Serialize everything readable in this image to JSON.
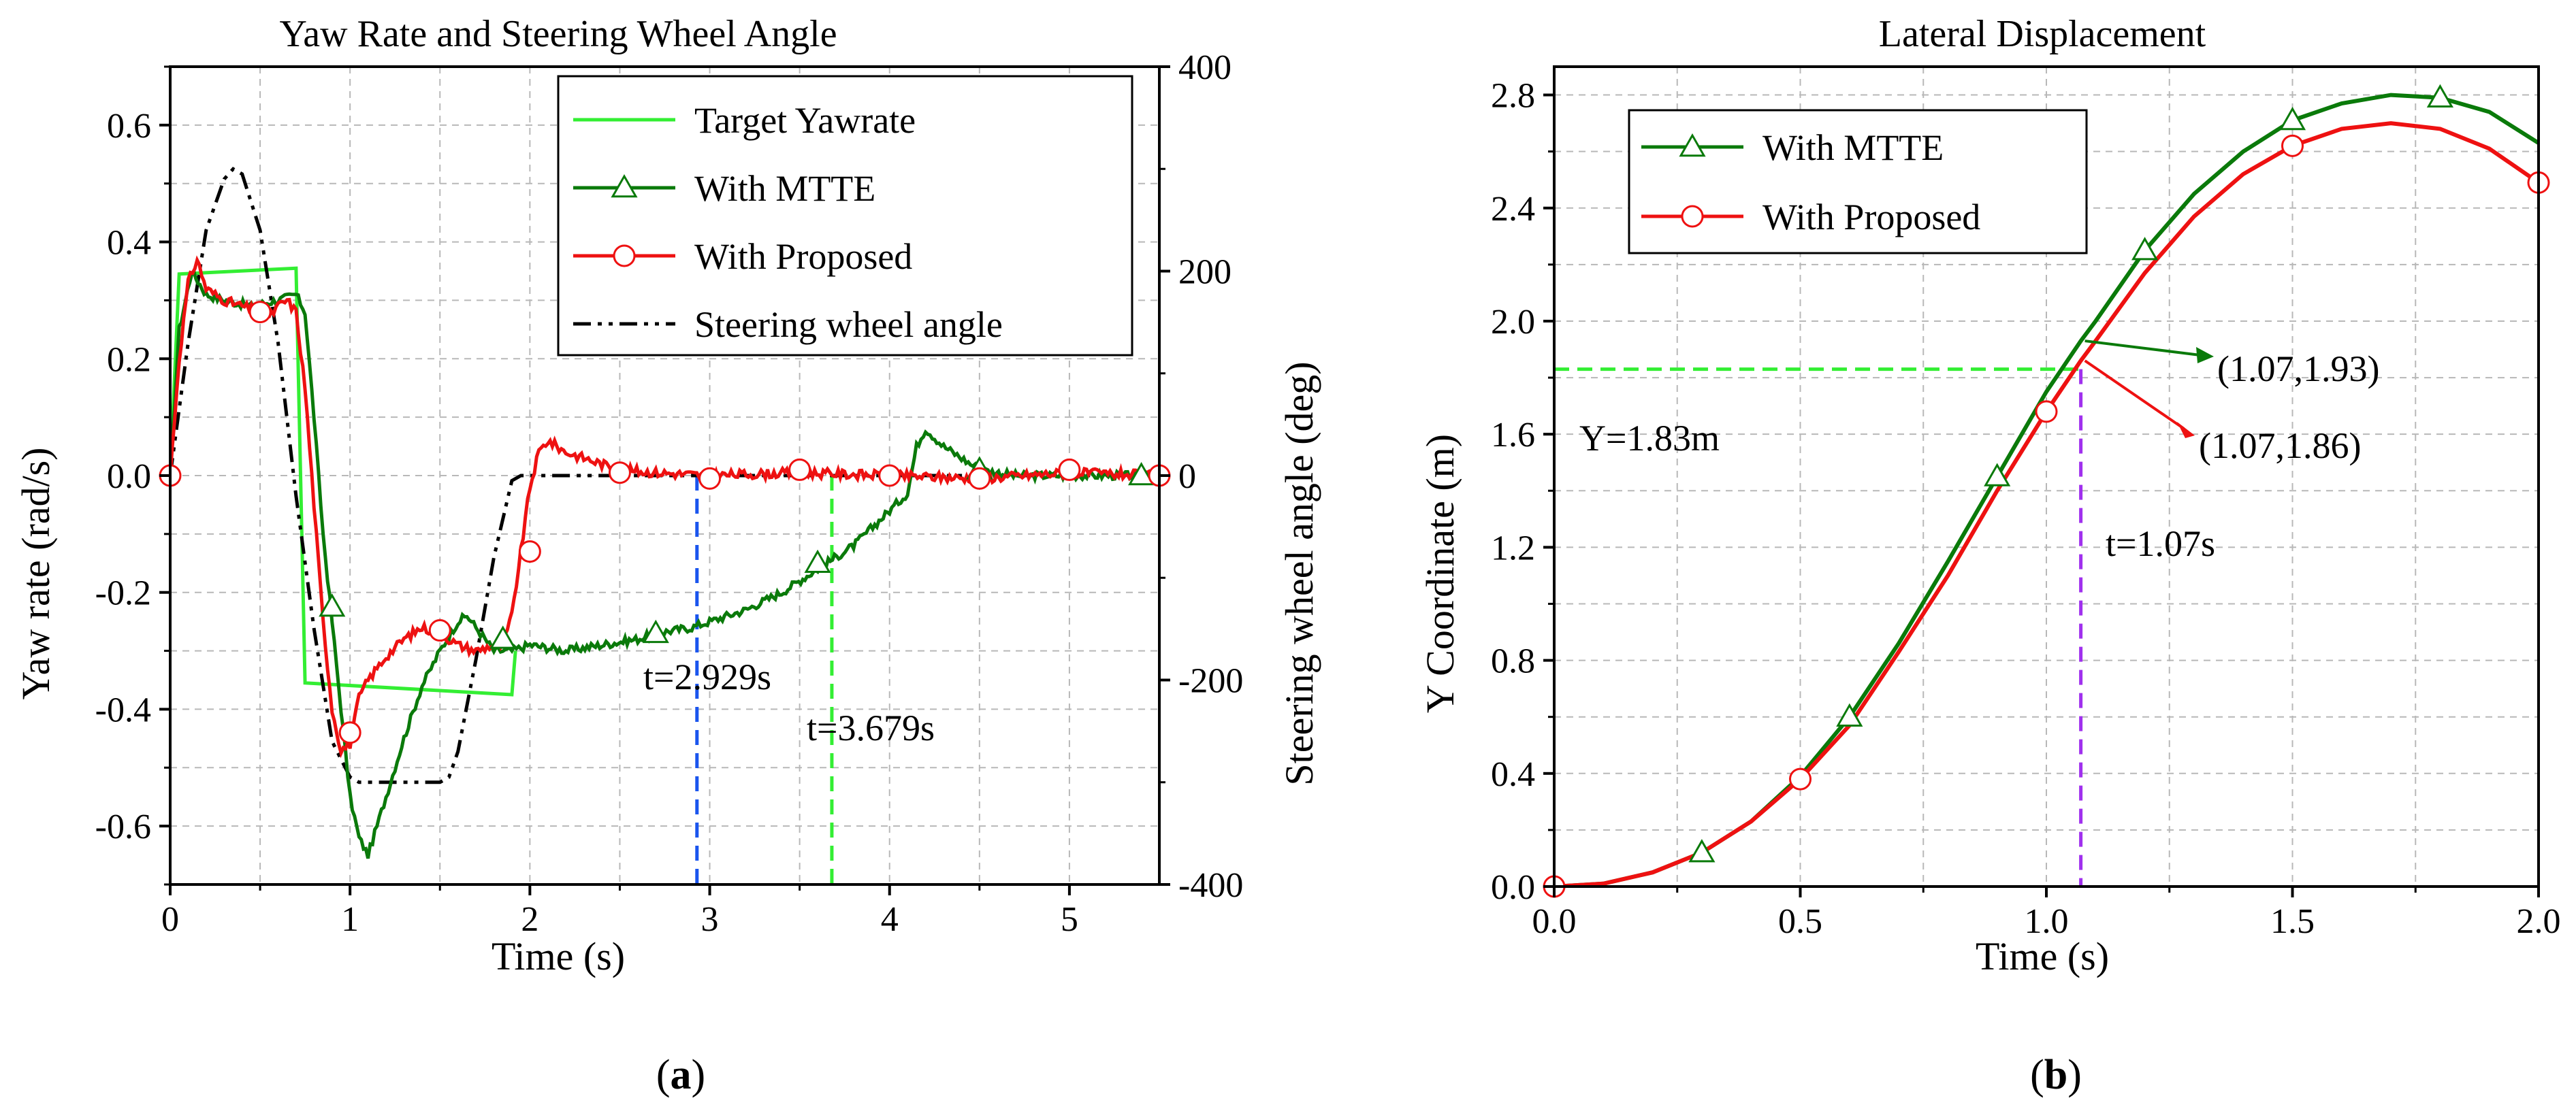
{
  "colors": {
    "target": "#33ee33",
    "mtte": "#0a7a0a",
    "proposed": "#ee1111",
    "steer": "#000000",
    "blue_marker": "#1a55ee",
    "green_marker": "#33ee33",
    "purple_marker": "#a030ee",
    "grid": "#b8b8b8"
  },
  "chart_data": [
    {
      "panel_label": "(a)",
      "panel_letter": "a",
      "type": "line",
      "title": "Yaw Rate and Steering Wheel Angle",
      "xlabel": "Time (s)",
      "ylabel": "Yaw rate (rad/s)",
      "y2label": "Steering wheel angle (deg)",
      "xlim": [
        0,
        5.5
      ],
      "ylim": [
        -0.7,
        0.7
      ],
      "y2lim": [
        -400,
        400
      ],
      "xticks": [
        "0",
        "1",
        "2",
        "3",
        "4",
        "5"
      ],
      "yticks": [
        "0.6",
        "0.4",
        "0.2",
        "0.0",
        "-0.2",
        "-0.4",
        "-0.6"
      ],
      "y2ticks": [
        "400",
        "200",
        "0",
        "-200",
        "-400"
      ],
      "grid": true,
      "legend_position": "top-right",
      "legend": [
        "Target Yawrate",
        "With MTTE",
        "With Proposed",
        "Steering wheel angle"
      ],
      "series": [
        {
          "name": "Target Yawrate",
          "axis": "left",
          "x": [
            0,
            0.05,
            0.7,
            0.75,
            1.9,
            1.92
          ],
          "y": [
            0,
            0.345,
            0.355,
            -0.355,
            -0.375,
            -0.3
          ]
        },
        {
          "name": "With MTTE",
          "axis": "left",
          "markers": "triangle",
          "x": [
            0,
            0.05,
            0.12,
            0.2,
            0.3,
            0.45,
            0.6,
            0.7,
            0.75,
            0.8,
            0.85,
            0.9,
            0.95,
            1.0,
            1.05,
            1.1,
            1.2,
            1.3,
            1.4,
            1.5,
            1.6,
            1.65,
            1.7,
            1.75,
            1.8,
            1.9,
            2.0,
            2.2,
            2.4,
            2.6,
            2.7,
            2.9,
            3.0,
            3.2,
            3.4,
            3.6,
            3.8,
            4.0,
            4.1,
            4.15,
            4.2,
            4.3,
            4.4,
            4.5,
            4.7,
            5.0,
            5.3,
            5.5
          ],
          "y": [
            0,
            0.25,
            0.35,
            0.31,
            0.3,
            0.29,
            0.3,
            0.31,
            0.28,
            0.1,
            -0.1,
            -0.25,
            -0.4,
            -0.55,
            -0.62,
            -0.65,
            -0.55,
            -0.45,
            -0.36,
            -0.3,
            -0.25,
            -0.24,
            -0.26,
            -0.28,
            -0.3,
            -0.3,
            -0.29,
            -0.3,
            -0.29,
            -0.28,
            -0.27,
            -0.26,
            -0.25,
            -0.23,
            -0.2,
            -0.16,
            -0.12,
            -0.06,
            -0.03,
            0.05,
            0.08,
            0.05,
            0.03,
            0.01,
            0.0,
            0.0,
            0.0,
            0.0
          ],
          "marker_x": [
            0.9,
            1.85,
            2.7,
            3.6,
            4.5,
            5.4
          ],
          "marker_y": [
            -0.225,
            -0.28,
            -0.27,
            -0.15,
            0.01,
            0.0
          ]
        },
        {
          "name": "With Proposed",
          "axis": "left",
          "markers": "circle",
          "x": [
            0,
            0.05,
            0.1,
            0.15,
            0.2,
            0.3,
            0.4,
            0.5,
            0.55,
            0.6,
            0.65,
            0.7,
            0.75,
            0.8,
            0.85,
            0.9,
            0.95,
            1.0,
            1.05,
            1.1,
            1.2,
            1.3,
            1.4,
            1.5,
            1.6,
            1.7,
            1.8,
            1.85,
            1.9,
            1.95,
            2.0,
            2.05,
            2.1,
            2.15,
            2.2,
            2.3,
            2.4,
            2.5,
            2.7,
            3.0,
            3.5,
            4.0,
            4.5,
            5.0,
            5.5
          ],
          "y": [
            0,
            0.2,
            0.33,
            0.37,
            0.32,
            0.3,
            0.29,
            0.28,
            0.27,
            0.29,
            0.3,
            0.28,
            0.15,
            -0.05,
            -0.25,
            -0.4,
            -0.47,
            -0.46,
            -0.38,
            -0.35,
            -0.31,
            -0.28,
            -0.26,
            -0.27,
            -0.29,
            -0.3,
            -0.29,
            -0.29,
            -0.24,
            -0.13,
            -0.02,
            0.04,
            0.06,
            0.05,
            0.04,
            0.03,
            0.02,
            0.01,
            0.005,
            0.0,
            0.005,
            0.0,
            -0.005,
            0.005,
            0.0
          ],
          "marker_x": [
            0,
            0.5,
            1.0,
            1.5,
            2.0,
            2.5,
            3.0,
            3.5,
            4.0,
            4.5,
            5.0,
            5.5
          ],
          "marker_y": [
            0,
            0.28,
            -0.44,
            -0.265,
            -0.13,
            0.005,
            -0.005,
            0.01,
            0.0,
            -0.005,
            0.01,
            0.0
          ]
        },
        {
          "name": "Steering wheel angle",
          "axis": "right",
          "x": [
            0,
            0.1,
            0.2,
            0.3,
            0.35,
            0.4,
            0.5,
            0.6,
            0.7,
            0.8,
            0.9,
            1.0,
            1.05,
            1.1,
            1.5,
            1.55,
            1.6,
            1.7,
            1.8,
            1.9,
            1.95,
            2.0,
            5.5
          ],
          "y": [
            0,
            130,
            240,
            290,
            300,
            295,
            240,
            130,
            -20,
            -150,
            -260,
            -295,
            -300,
            -300,
            -300,
            -295,
            -270,
            -180,
            -80,
            -5,
            0,
            0,
            0
          ]
        }
      ],
      "annotations": [
        {
          "text": "t=2.929s",
          "x": 2.929
        },
        {
          "text": "t=3.679s",
          "x": 3.679
        }
      ]
    },
    {
      "panel_label": "(b)",
      "panel_letter": "b",
      "type": "line",
      "title": "Lateral Displacement",
      "xlabel": "Time (s)",
      "ylabel": "Y Coordinate (m)",
      "xlim": [
        0,
        2.0
      ],
      "ylim": [
        0,
        2.9
      ],
      "xticks": [
        "0.0",
        "0.5",
        "1.0",
        "1.5",
        "2.0"
      ],
      "yticks": [
        "2.8",
        "2.4",
        "2.0",
        "1.6",
        "1.2",
        "0.8",
        "0.4",
        "0.0"
      ],
      "grid": true,
      "legend_position": "top-left",
      "legend": [
        "With MTTE",
        "With Proposed"
      ],
      "series": [
        {
          "name": "With MTTE",
          "markers": "triangle",
          "x": [
            0,
            0.1,
            0.2,
            0.3,
            0.4,
            0.5,
            0.6,
            0.7,
            0.8,
            0.9,
            1.0,
            1.07,
            1.1,
            1.2,
            1.3,
            1.4,
            1.5,
            1.6,
            1.7,
            1.8,
            1.9,
            2.0
          ],
          "y": [
            0,
            0.01,
            0.05,
            0.12,
            0.23,
            0.39,
            0.6,
            0.86,
            1.15,
            1.45,
            1.75,
            1.93,
            2.0,
            2.25,
            2.45,
            2.6,
            2.71,
            2.77,
            2.8,
            2.79,
            2.74,
            2.63
          ],
          "marker_x": [
            0.3,
            0.6,
            0.9,
            1.2,
            1.5,
            1.8
          ],
          "marker_y": [
            0.12,
            0.6,
            1.45,
            2.25,
            2.71,
            2.79
          ]
        },
        {
          "name": "With Proposed",
          "markers": "circle",
          "x": [
            0,
            0.1,
            0.2,
            0.3,
            0.4,
            0.5,
            0.6,
            0.7,
            0.8,
            0.9,
            1.0,
            1.07,
            1.1,
            1.2,
            1.3,
            1.4,
            1.5,
            1.6,
            1.7,
            1.8,
            1.9,
            2.0
          ],
          "y": [
            0,
            0.01,
            0.05,
            0.12,
            0.23,
            0.38,
            0.57,
            0.83,
            1.1,
            1.4,
            1.68,
            1.86,
            1.93,
            2.17,
            2.37,
            2.52,
            2.62,
            2.68,
            2.7,
            2.68,
            2.61,
            2.49
          ],
          "marker_x": [
            0,
            0.5,
            1.0,
            1.5,
            2.0
          ],
          "marker_y": [
            0,
            0.38,
            1.68,
            2.62,
            2.49
          ]
        }
      ],
      "annotations": [
        {
          "text": "Y=1.83m",
          "y": 1.83
        },
        {
          "text": "t=1.07s",
          "x": 1.07
        },
        {
          "text": "(1.07,1.93)",
          "x": 1.07,
          "y": 1.93
        },
        {
          "text": "(1.07,1.86)",
          "x": 1.07,
          "y": 1.86
        }
      ]
    }
  ]
}
